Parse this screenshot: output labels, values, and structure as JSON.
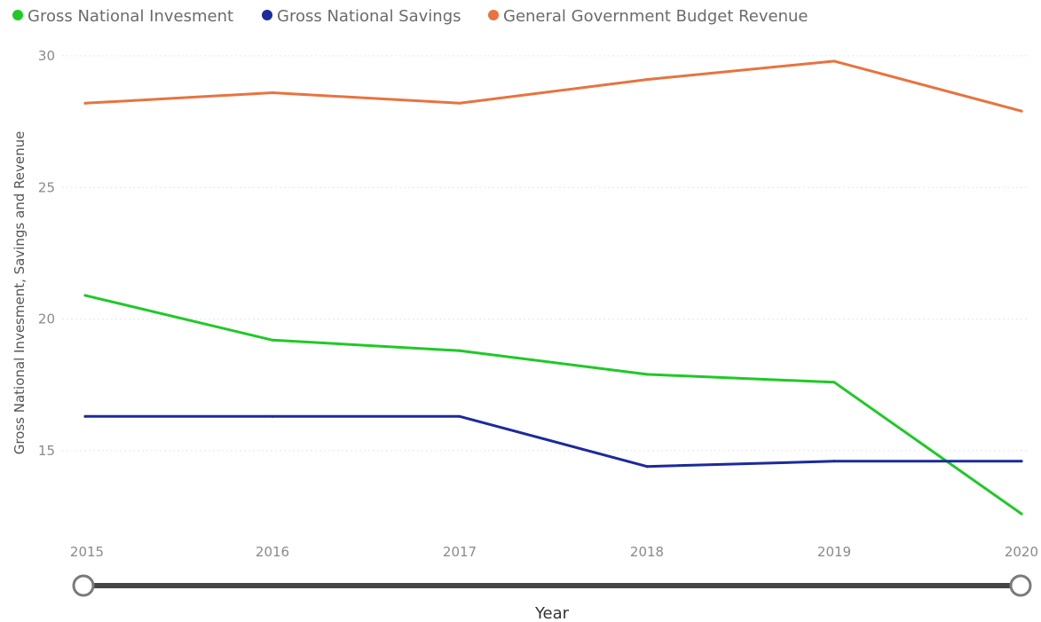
{
  "chart_data": {
    "type": "line",
    "title": "",
    "xlabel": "Year",
    "ylabel": "Gross National Invesment, Savings and Revenue",
    "x": [
      "2015",
      "2016",
      "2017",
      "2018",
      "2019",
      "2020"
    ],
    "ylim": [
      12.3,
      30.2
    ],
    "yticks": [
      15,
      20,
      25,
      30
    ],
    "grid": true,
    "legend_position": "top-left",
    "series": [
      {
        "name": "Gross National Invesment",
        "color": "#1fc927",
        "values": [
          20.9,
          19.2,
          18.8,
          17.9,
          17.6,
          12.6
        ]
      },
      {
        "name": "Gross National Savings",
        "color": "#1b2a9c",
        "values": [
          16.3,
          16.3,
          16.3,
          14.4,
          14.6,
          14.6
        ]
      },
      {
        "name": "General Government  Budget Revenue",
        "color": "#e8733f",
        "values": [
          28.2,
          28.6,
          28.2,
          29.1,
          29.8,
          27.9
        ]
      }
    ]
  },
  "slider": {
    "range": [
      "2015",
      "2020"
    ]
  }
}
